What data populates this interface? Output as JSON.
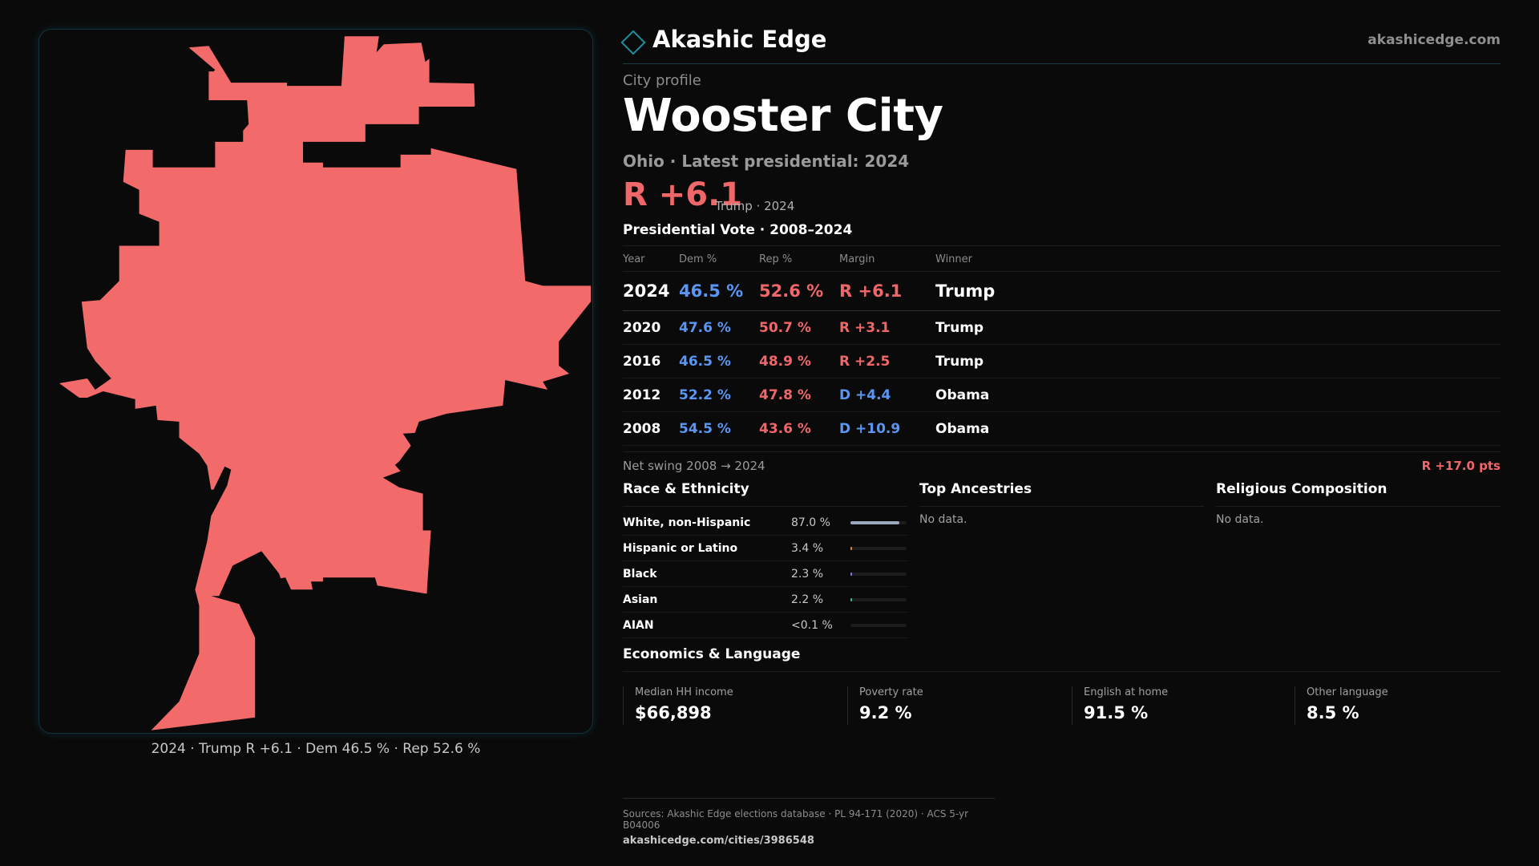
{
  "brand": {
    "name": "Akashic Edge",
    "domain": "akashicedge.com",
    "accent_color": "#1f8fa0"
  },
  "profile": {
    "kicker": "City profile",
    "title": "Wooster City",
    "subtitle": "Ohio · Latest presidential: 2024",
    "headline_margin": "R +6.1",
    "headline_note": "Trump · 2024"
  },
  "map": {
    "caption": "2024 · Trump R +6.1 · Dem 46.5 % · Rep 52.6 %",
    "fill_color": "#f36a6b"
  },
  "vote": {
    "section_title": "Presidential Vote · 2008–2024",
    "columns": [
      "Year",
      "Dem %",
      "Rep %",
      "Margin",
      "Winner"
    ],
    "rows": [
      {
        "year": "2024",
        "dem": "46.5 %",
        "rep": "52.6 %",
        "margin": "R +6.1",
        "winner": "Trump"
      },
      {
        "year": "2020",
        "dem": "47.6 %",
        "rep": "50.7 %",
        "margin": "R +3.1",
        "winner": "Trump"
      },
      {
        "year": "2016",
        "dem": "46.5 %",
        "rep": "48.9 %",
        "margin": "R +2.5",
        "winner": "Trump"
      },
      {
        "year": "2012",
        "dem": "52.2 %",
        "rep": "47.8 %",
        "margin": "D +4.4",
        "winner": "Obama"
      },
      {
        "year": "2008",
        "dem": "54.5 %",
        "rep": "43.6 %",
        "margin": "D +10.9",
        "winner": "Obama"
      }
    ],
    "net_swing_label": "Net swing 2008 → 2024",
    "net_swing_value": "R +17.0 pts",
    "dem_color": "#5b96f5",
    "rep_color": "#f0676a"
  },
  "race": {
    "title": "Race & Ethnicity",
    "rows": [
      {
        "label": "White, non-Hispanic",
        "value": "87.0 %",
        "share": 0.87,
        "color": "#9aa8bd"
      },
      {
        "label": "Hispanic or Latino",
        "value": "3.4 %",
        "share": 0.034,
        "color": "#e08a3c"
      },
      {
        "label": "Black",
        "value": "2.3 %",
        "share": 0.023,
        "color": "#8a7be0"
      },
      {
        "label": "Asian",
        "value": "2.2 %",
        "share": 0.022,
        "color": "#3cbf8a"
      },
      {
        "label": "AIAN",
        "value": "<0.1 %",
        "share": 0.0,
        "color": "#9aa8bd"
      }
    ]
  },
  "ancestries": {
    "title": "Top Ancestries",
    "empty": "No data."
  },
  "religion": {
    "title": "Religious Composition",
    "empty": "No data."
  },
  "economics": {
    "title": "Economics & Language",
    "stats": [
      {
        "label": "Median HH income",
        "value": "$66,898"
      },
      {
        "label": "Poverty rate",
        "value": "9.2 %"
      },
      {
        "label": "English at home",
        "value": "91.5 %"
      },
      {
        "label": "Other language",
        "value": "8.5 %"
      }
    ]
  },
  "footer": {
    "sources": "Sources: Akashic Edge elections database · PL 94-171 (2020) · ACS 5-yr B04006",
    "url": "akashicedge.com/cities/3986548"
  }
}
